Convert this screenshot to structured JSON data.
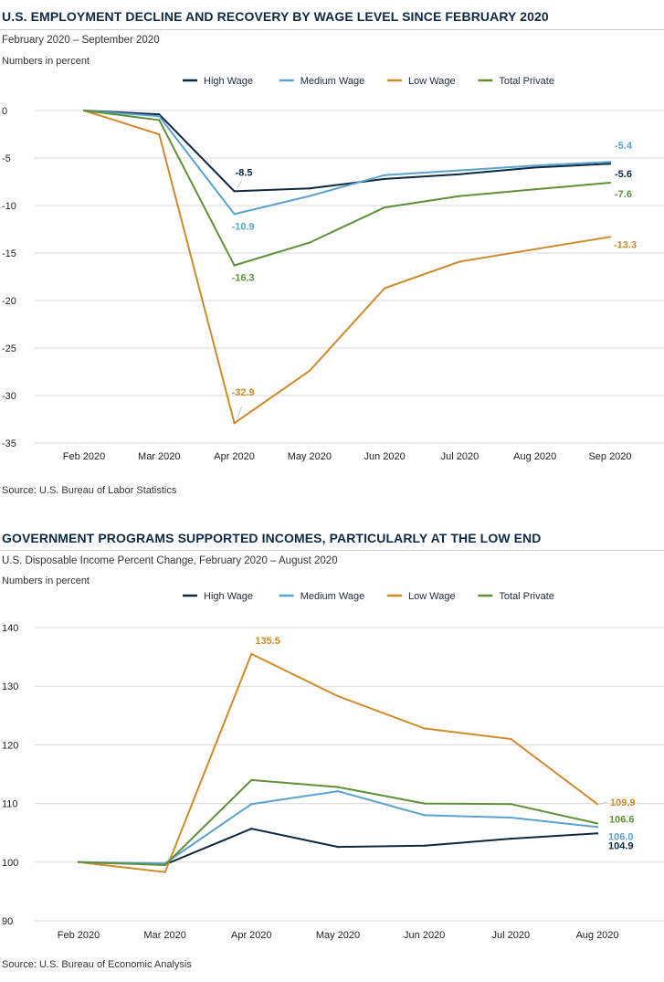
{
  "colors": {
    "high_wage": "#0e2841",
    "medium_wage": "#5aa3cf",
    "low_wage": "#d08a2c",
    "total_private": "#5e9137",
    "grid": "#d9d9d9",
    "title": "#0f2a44"
  },
  "panel1": {
    "title": "U.S. EMPLOYMENT DECLINE AND RECOVERY BY WAGE LEVEL SINCE FEBRUARY 2020",
    "subtitle": "February 2020 – September 2020",
    "units": "Numbers in percent",
    "source": "Source:  U.S. Bureau of Labor Statistics"
  },
  "panel2": {
    "title": "GOVERNMENT PROGRAMS SUPPORTED INCOMES, PARTICULARLY AT THE LOW END",
    "subtitle": "U.S. Disposable Income Percent Change, February 2020 – August 2020",
    "units": "Numbers in percent",
    "source": "Source:  U.S. Bureau of Economic Analysis"
  },
  "chart_data": [
    {
      "type": "line",
      "title": "U.S. EMPLOYMENT DECLINE AND RECOVERY BY WAGE LEVEL SINCE FEBRUARY 2020",
      "xlabel": "",
      "ylabel": "Numbers in percent",
      "categories": [
        "Feb 2020",
        "Mar 2020",
        "Apr 2020",
        "May 2020",
        "Jun 2020",
        "Jul 2020",
        "Aug 2020",
        "Sep 2020"
      ],
      "ylim": [
        -35,
        0
      ],
      "yticks": [
        0,
        -5,
        -10,
        -15,
        -20,
        -25,
        -30,
        -35
      ],
      "grid": true,
      "legend_position": "top-center",
      "series": [
        {
          "key": "high_wage",
          "name": "High Wage",
          "values": [
            0,
            -0.4,
            -8.5,
            -8.2,
            -7.2,
            -6.7,
            -6.0,
            -5.6
          ]
        },
        {
          "key": "medium_wage",
          "name": "Medium Wage",
          "values": [
            0,
            -0.6,
            -10.9,
            -9.0,
            -6.8,
            -6.3,
            -5.8,
            -5.4
          ]
        },
        {
          "key": "low_wage",
          "name": "Low Wage",
          "values": [
            0,
            -2.5,
            -32.9,
            -27.4,
            -18.7,
            -15.9,
            -14.6,
            -13.3
          ]
        },
        {
          "key": "total_private",
          "name": "Total Private",
          "values": [
            0,
            -1.0,
            -16.3,
            -13.9,
            -10.2,
            -9.0,
            -8.3,
            -7.6
          ]
        }
      ],
      "annotations": [
        {
          "series": "high_wage",
          "index": 2,
          "label": "-8.5"
        },
        {
          "series": "medium_wage",
          "index": 2,
          "label": "-10.9"
        },
        {
          "series": "total_private",
          "index": 2,
          "label": "-16.3"
        },
        {
          "series": "low_wage",
          "index": 2,
          "label": "-32.9"
        },
        {
          "series": "medium_wage",
          "index": 7,
          "label": "-5.4"
        },
        {
          "series": "high_wage",
          "index": 7,
          "label": "-5.6"
        },
        {
          "series": "total_private",
          "index": 7,
          "label": "-7.6"
        },
        {
          "series": "low_wage",
          "index": 7,
          "label": "-13.3"
        }
      ]
    },
    {
      "type": "line",
      "title": "GOVERNMENT PROGRAMS SUPPORTED INCOMES, PARTICULARLY AT THE LOW END",
      "xlabel": "",
      "ylabel": "Numbers in percent",
      "categories": [
        "Feb 2020",
        "Mar 2020",
        "Apr 2020",
        "May 2020",
        "Jun 2020",
        "Jul 2020",
        "Aug 2020"
      ],
      "ylim": [
        90,
        140
      ],
      "yticks": [
        140,
        130,
        120,
        110,
        100,
        90
      ],
      "grid": true,
      "legend_position": "top-center",
      "series": [
        {
          "key": "high_wage",
          "name": "High Wage",
          "values": [
            100,
            99.6,
            105.7,
            102.6,
            102.8,
            104.0,
            104.9
          ]
        },
        {
          "key": "medium_wage",
          "name": "Medium Wage",
          "values": [
            100,
            99.8,
            109.9,
            112.1,
            108.0,
            107.6,
            106.0
          ]
        },
        {
          "key": "low_wage",
          "name": "Low Wage",
          "values": [
            100,
            98.3,
            135.5,
            128.3,
            122.8,
            121.0,
            109.9
          ]
        },
        {
          "key": "total_private",
          "name": "Total Private",
          "values": [
            100,
            99.5,
            114.0,
            112.8,
            110.0,
            109.9,
            106.6
          ]
        }
      ],
      "annotations": [
        {
          "series": "low_wage",
          "index": 2,
          "label": "135.5"
        },
        {
          "series": "low_wage",
          "index": 6,
          "label": "109.9"
        },
        {
          "series": "total_private",
          "index": 6,
          "label": "106.6"
        },
        {
          "series": "medium_wage",
          "index": 6,
          "label": "106.0"
        },
        {
          "series": "high_wage",
          "index": 6,
          "label": "104.9"
        }
      ]
    }
  ]
}
